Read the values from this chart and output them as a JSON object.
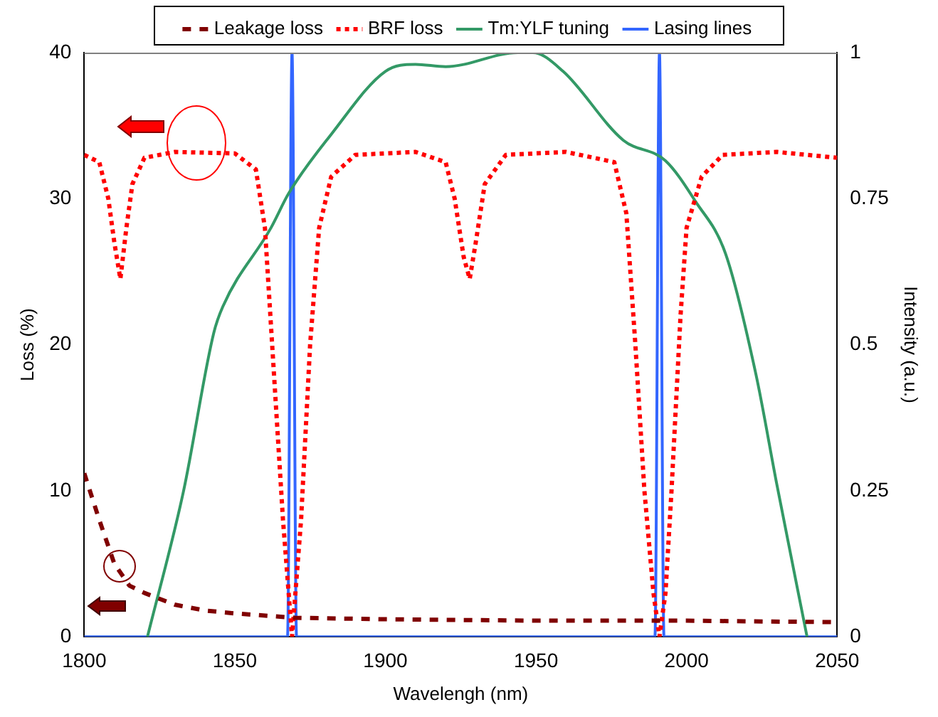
{
  "chart_data": {
    "type": "line",
    "xlabel": "Wavelengh (nm)",
    "ylabel": "Loss (%)",
    "y2label": "Intensity (a.u.)",
    "xlim": [
      1800,
      2050
    ],
    "xticks": [
      1800,
      1850,
      1900,
      1950,
      2000,
      2050
    ],
    "ylim": [
      0,
      40
    ],
    "yticks": [
      0,
      10,
      20,
      30,
      40
    ],
    "y2lim": [
      0,
      1
    ],
    "y2ticks": [
      0,
      0.25,
      0.5,
      0.75,
      1
    ],
    "grid": false,
    "legend": "top",
    "marker": "none",
    "series": [
      {
        "name": "Leakage loss",
        "color": "#800000",
        "line_style": "dashed",
        "x": [
          1800,
          1805,
          1810,
          1815,
          1820,
          1830,
          1840,
          1850,
          1870,
          1900,
          1950,
          2000,
          2050
        ],
        "values": [
          11.2,
          8,
          5,
          3.5,
          3,
          2.2,
          1.8,
          1.6,
          1.3,
          1.2,
          1.1,
          1.1,
          1.0
        ]
      },
      {
        "name": "BRF loss",
        "color": "#ff0000",
        "line_style": "dotted",
        "x": [
          1800,
          1805,
          1808,
          1810,
          1812,
          1814,
          1816,
          1820,
          1830,
          1850,
          1857,
          1860,
          1863,
          1866,
          1869,
          1872,
          1875,
          1878,
          1882,
          1890,
          1910,
          1920,
          1923,
          1926,
          1928,
          1930,
          1933,
          1940,
          1960,
          1976,
          1980,
          1983,
          1986,
          1989,
          1991,
          1993,
          1995,
          1998,
          2000,
          2005,
          2012,
          2030,
          2050
        ],
        "values": [
          33,
          32.5,
          30,
          27,
          24.5,
          28,
          31,
          32.8,
          33.2,
          33.1,
          32,
          28,
          18,
          8,
          0,
          8,
          20,
          28,
          31.5,
          33,
          33.2,
          32.5,
          30,
          26,
          24.5,
          27,
          31,
          33,
          33.2,
          32.5,
          29,
          20,
          10,
          3,
          0,
          3,
          10,
          22,
          28,
          31.5,
          33,
          33.2,
          32.8
        ]
      },
      {
        "name": "Tm:YLF tuning",
        "color": "#339966",
        "line_style": "solid",
        "axis": "y2",
        "x": [
          1821,
          1833,
          1843,
          1846,
          1862,
          1868,
          1882,
          1900,
          1910,
          1920,
          1944,
          1949,
          1959,
          1979,
          1993,
          2003,
          2013,
          2023,
          2030,
          2040
        ],
        "values": [
          0,
          0.25,
          0.52,
          0.565,
          0.7,
          0.76,
          0.86,
          0.968,
          0.98,
          0.976,
          1,
          1,
          0.968,
          0.85,
          0.815,
          0.745,
          0.655,
          0.45,
          0.26,
          0
        ]
      },
      {
        "name": "Lasing lines",
        "color": "#3366ff",
        "line_style": "solid",
        "axis": "y2",
        "x": [
          1800,
          1867.5,
          1869,
          1870.5,
          1989.5,
          1991,
          1992.5,
          2050
        ],
        "values": [
          0,
          0,
          1,
          0,
          0,
          1,
          0,
          0
        ]
      }
    ]
  }
}
